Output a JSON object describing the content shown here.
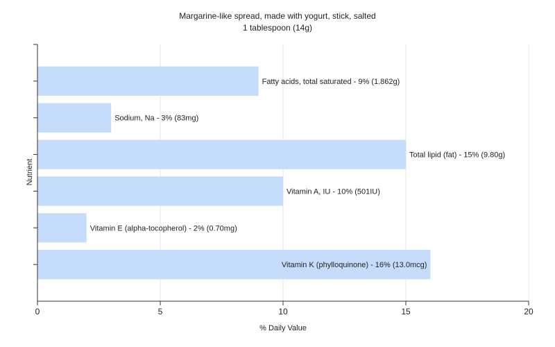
{
  "chart_data": {
    "type": "bar",
    "orientation": "horizontal",
    "title": "Margarine-like spread, made with yogurt, stick, salted",
    "subtitle": "1 tablespoon (14g)",
    "xlabel": "% Daily Value",
    "ylabel": "Nutrient",
    "xlim": [
      0,
      20
    ],
    "xticks": [
      0,
      5,
      10,
      15,
      20
    ],
    "grid": true,
    "bar_color": "#c6dcfd",
    "categories": [
      "Fatty acids, total saturated",
      "Sodium, Na",
      "Total lipid (fat)",
      "Vitamin A, IU",
      "Vitamin E (alpha-tocopherol)",
      "Vitamin K (phylloquinone)"
    ],
    "values": [
      9,
      3,
      15,
      10,
      2,
      16
    ],
    "labels": [
      "Fatty acids, total saturated - 9% (1.862g)",
      "Sodium, Na - 3% (83mg)",
      "Total lipid (fat) - 15% (9.80g)",
      "Vitamin A, IU - 10% (501IU)",
      "Vitamin E (alpha-tocopherol) - 2% (0.70mg)",
      "Vitamin K (phylloquinone) - 16% (13.0mcg)"
    ]
  }
}
